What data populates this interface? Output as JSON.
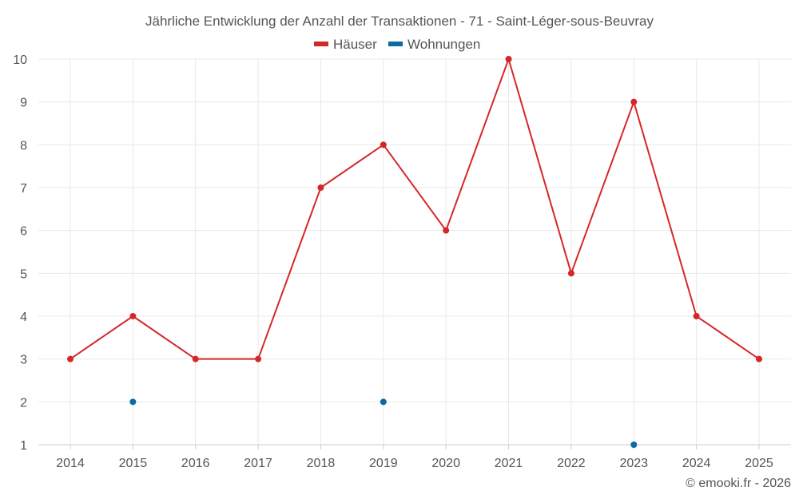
{
  "chart_data": {
    "type": "line",
    "title": "Jährliche Entwicklung der Anzahl der Transaktionen - 71 - Saint-Léger-sous-Beuvray",
    "categories": [
      "2014",
      "2015",
      "2016",
      "2017",
      "2018",
      "2019",
      "2020",
      "2021",
      "2022",
      "2023",
      "2024",
      "2025"
    ],
    "series": [
      {
        "name": "Häuser",
        "color": "#d62728",
        "values": [
          3,
          4,
          3,
          3,
          7,
          8,
          6,
          10,
          5,
          9,
          4,
          3
        ]
      },
      {
        "name": "Wohnungen",
        "color": "#0a6aa1",
        "values": [
          null,
          2,
          null,
          null,
          null,
          2,
          null,
          null,
          null,
          1,
          null,
          null
        ]
      }
    ],
    "ylim": [
      1,
      10
    ],
    "yticks": [
      1,
      2,
      3,
      4,
      5,
      6,
      7,
      8,
      9,
      10
    ],
    "xlabel": "",
    "ylabel": "",
    "legend_position": "top-center",
    "grid": true
  },
  "credit": "© emooki.fr - 2026"
}
